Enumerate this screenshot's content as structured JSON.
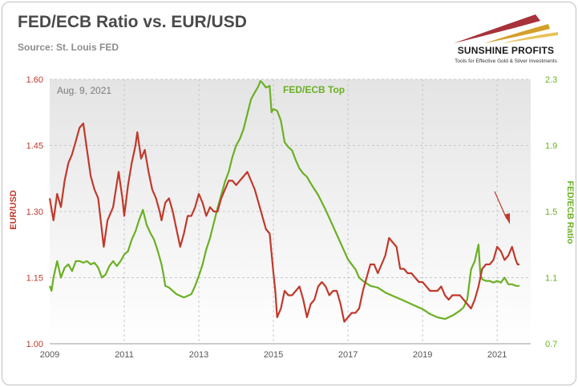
{
  "header": {
    "title": "FED/ECB Ratio vs. EUR/USD",
    "subtitle": "Source: St. Louis FED"
  },
  "logo": {
    "name": "SUNSHINE PROFITS",
    "tagline": "Tools for Effective Gold & Silver Investments",
    "colors": [
      "#c0392b",
      "#d4a02a"
    ]
  },
  "chart_data": {
    "type": "line",
    "date_label": "Aug. 9, 2021",
    "annotation": "FED/ECB Top",
    "x_ticks": [
      "2009",
      "2011",
      "2013",
      "2015",
      "2017",
      "2019",
      "2021"
    ],
    "xlim": [
      2009.0,
      2021.9
    ],
    "left_axis": {
      "label": "EUR/USD",
      "ticks": [
        "1.60",
        "1.45",
        "1.30",
        "1.15",
        "1.00"
      ],
      "ylim": [
        1.0,
        1.6
      ],
      "color": "#c0392b"
    },
    "right_axis": {
      "label": "FED/ECB Ratio",
      "ticks": [
        "2.3",
        "1.9",
        "1.5",
        "1.1",
        "0.7"
      ],
      "ylim": [
        0.7,
        2.3
      ],
      "color": "#6ab023"
    },
    "grid": true,
    "series": [
      {
        "name": "EUR/USD",
        "axis": "left",
        "color": "#c0392b",
        "points": [
          [
            2009.0,
            1.33
          ],
          [
            2009.1,
            1.28
          ],
          [
            2009.2,
            1.34
          ],
          [
            2009.3,
            1.31
          ],
          [
            2009.4,
            1.37
          ],
          [
            2009.5,
            1.41
          ],
          [
            2009.6,
            1.43
          ],
          [
            2009.7,
            1.46
          ],
          [
            2009.8,
            1.49
          ],
          [
            2009.9,
            1.5
          ],
          [
            2010.0,
            1.44
          ],
          [
            2010.1,
            1.38
          ],
          [
            2010.2,
            1.35
          ],
          [
            2010.3,
            1.33
          ],
          [
            2010.45,
            1.22
          ],
          [
            2010.55,
            1.28
          ],
          [
            2010.7,
            1.31
          ],
          [
            2010.85,
            1.39
          ],
          [
            2010.95,
            1.33
          ],
          [
            2011.0,
            1.29
          ],
          [
            2011.1,
            1.36
          ],
          [
            2011.2,
            1.41
          ],
          [
            2011.3,
            1.45
          ],
          [
            2011.35,
            1.48
          ],
          [
            2011.45,
            1.42
          ],
          [
            2011.55,
            1.44
          ],
          [
            2011.65,
            1.39
          ],
          [
            2011.75,
            1.35
          ],
          [
            2011.85,
            1.33
          ],
          [
            2011.95,
            1.3
          ],
          [
            2012.0,
            1.28
          ],
          [
            2012.1,
            1.32
          ],
          [
            2012.2,
            1.33
          ],
          [
            2012.3,
            1.3
          ],
          [
            2012.4,
            1.26
          ],
          [
            2012.5,
            1.22
          ],
          [
            2012.6,
            1.25
          ],
          [
            2012.7,
            1.29
          ],
          [
            2012.8,
            1.29
          ],
          [
            2012.9,
            1.31
          ],
          [
            2013.0,
            1.34
          ],
          [
            2013.1,
            1.32
          ],
          [
            2013.2,
            1.29
          ],
          [
            2013.3,
            1.31
          ],
          [
            2013.4,
            1.3
          ],
          [
            2013.5,
            1.3
          ],
          [
            2013.6,
            1.33
          ],
          [
            2013.7,
            1.35
          ],
          [
            2013.8,
            1.37
          ],
          [
            2013.9,
            1.37
          ],
          [
            2014.0,
            1.36
          ],
          [
            2014.1,
            1.37
          ],
          [
            2014.2,
            1.38
          ],
          [
            2014.3,
            1.39
          ],
          [
            2014.4,
            1.37
          ],
          [
            2014.5,
            1.35
          ],
          [
            2014.6,
            1.32
          ],
          [
            2014.7,
            1.29
          ],
          [
            2014.8,
            1.26
          ],
          [
            2014.9,
            1.25
          ],
          [
            2015.0,
            1.16
          ],
          [
            2015.05,
            1.12
          ],
          [
            2015.1,
            1.06
          ],
          [
            2015.2,
            1.08
          ],
          [
            2015.3,
            1.12
          ],
          [
            2015.4,
            1.11
          ],
          [
            2015.5,
            1.11
          ],
          [
            2015.6,
            1.12
          ],
          [
            2015.7,
            1.13
          ],
          [
            2015.8,
            1.1
          ],
          [
            2015.9,
            1.06
          ],
          [
            2016.0,
            1.09
          ],
          [
            2016.1,
            1.1
          ],
          [
            2016.2,
            1.13
          ],
          [
            2016.3,
            1.14
          ],
          [
            2016.4,
            1.13
          ],
          [
            2016.5,
            1.11
          ],
          [
            2016.6,
            1.12
          ],
          [
            2016.7,
            1.12
          ],
          [
            2016.8,
            1.09
          ],
          [
            2016.9,
            1.05
          ],
          [
            2017.0,
            1.06
          ],
          [
            2017.1,
            1.07
          ],
          [
            2017.2,
            1.07
          ],
          [
            2017.3,
            1.08
          ],
          [
            2017.4,
            1.12
          ],
          [
            2017.5,
            1.15
          ],
          [
            2017.6,
            1.18
          ],
          [
            2017.7,
            1.18
          ],
          [
            2017.8,
            1.16
          ],
          [
            2017.9,
            1.18
          ],
          [
            2018.0,
            1.2
          ],
          [
            2018.1,
            1.24
          ],
          [
            2018.2,
            1.23
          ],
          [
            2018.3,
            1.22
          ],
          [
            2018.4,
            1.17
          ],
          [
            2018.5,
            1.17
          ],
          [
            2018.6,
            1.16
          ],
          [
            2018.7,
            1.16
          ],
          [
            2018.8,
            1.15
          ],
          [
            2018.9,
            1.14
          ],
          [
            2019.0,
            1.14
          ],
          [
            2019.1,
            1.13
          ],
          [
            2019.2,
            1.12
          ],
          [
            2019.3,
            1.12
          ],
          [
            2019.4,
            1.12
          ],
          [
            2019.5,
            1.13
          ],
          [
            2019.6,
            1.11
          ],
          [
            2019.7,
            1.1
          ],
          [
            2019.8,
            1.11
          ],
          [
            2019.9,
            1.11
          ],
          [
            2020.0,
            1.11
          ],
          [
            2020.1,
            1.1
          ],
          [
            2020.2,
            1.09
          ],
          [
            2020.3,
            1.08
          ],
          [
            2020.4,
            1.1
          ],
          [
            2020.5,
            1.13
          ],
          [
            2020.6,
            1.17
          ],
          [
            2020.7,
            1.18
          ],
          [
            2020.8,
            1.18
          ],
          [
            2020.9,
            1.19
          ],
          [
            2021.0,
            1.22
          ],
          [
            2021.1,
            1.21
          ],
          [
            2021.2,
            1.19
          ],
          [
            2021.3,
            1.2
          ],
          [
            2021.4,
            1.22
          ],
          [
            2021.5,
            1.19
          ],
          [
            2021.55,
            1.18
          ],
          [
            2021.6,
            1.18
          ]
        ]
      },
      {
        "name": "FED/ECB Ratio",
        "axis": "right",
        "color": "#6ab023",
        "points": [
          [
            2009.0,
            1.05
          ],
          [
            2009.05,
            1.02
          ],
          [
            2009.1,
            1.1
          ],
          [
            2009.2,
            1.2
          ],
          [
            2009.3,
            1.1
          ],
          [
            2009.4,
            1.16
          ],
          [
            2009.5,
            1.18
          ],
          [
            2009.6,
            1.14
          ],
          [
            2009.7,
            1.2
          ],
          [
            2009.8,
            1.2
          ],
          [
            2009.9,
            1.19
          ],
          [
            2010.0,
            1.2
          ],
          [
            2010.1,
            1.18
          ],
          [
            2010.2,
            1.19
          ],
          [
            2010.3,
            1.16
          ],
          [
            2010.4,
            1.1
          ],
          [
            2010.5,
            1.12
          ],
          [
            2010.6,
            1.17
          ],
          [
            2010.7,
            1.2
          ],
          [
            2010.8,
            1.17
          ],
          [
            2010.9,
            1.2
          ],
          [
            2011.0,
            1.24
          ],
          [
            2011.1,
            1.26
          ],
          [
            2011.2,
            1.33
          ],
          [
            2011.3,
            1.38
          ],
          [
            2011.4,
            1.45
          ],
          [
            2011.5,
            1.51
          ],
          [
            2011.6,
            1.42
          ],
          [
            2011.7,
            1.37
          ],
          [
            2011.8,
            1.33
          ],
          [
            2011.9,
            1.26
          ],
          [
            2012.0,
            1.18
          ],
          [
            2012.05,
            1.12
          ],
          [
            2012.1,
            1.05
          ],
          [
            2012.2,
            1.04
          ],
          [
            2012.3,
            1.02
          ],
          [
            2012.4,
            1.0
          ],
          [
            2012.5,
            0.99
          ],
          [
            2012.6,
            0.98
          ],
          [
            2012.7,
            0.99
          ],
          [
            2012.8,
            1.0
          ],
          [
            2012.9,
            1.05
          ],
          [
            2013.0,
            1.11
          ],
          [
            2013.1,
            1.18
          ],
          [
            2013.2,
            1.27
          ],
          [
            2013.3,
            1.34
          ],
          [
            2013.4,
            1.43
          ],
          [
            2013.5,
            1.52
          ],
          [
            2013.6,
            1.6
          ],
          [
            2013.7,
            1.68
          ],
          [
            2013.8,
            1.74
          ],
          [
            2013.9,
            1.83
          ],
          [
            2014.0,
            1.9
          ],
          [
            2014.1,
            1.94
          ],
          [
            2014.2,
            2.0
          ],
          [
            2014.3,
            2.09
          ],
          [
            2014.4,
            2.18
          ],
          [
            2014.5,
            2.22
          ],
          [
            2014.6,
            2.26
          ],
          [
            2014.65,
            2.29
          ],
          [
            2014.7,
            2.28
          ],
          [
            2014.8,
            2.25
          ],
          [
            2014.9,
            2.26
          ],
          [
            2014.95,
            2.1
          ],
          [
            2015.0,
            2.12
          ],
          [
            2015.1,
            2.11
          ],
          [
            2015.2,
            2.05
          ],
          [
            2015.3,
            1.92
          ],
          [
            2015.4,
            1.89
          ],
          [
            2015.5,
            1.87
          ],
          [
            2015.6,
            1.81
          ],
          [
            2015.7,
            1.76
          ],
          [
            2015.8,
            1.73
          ],
          [
            2015.9,
            1.71
          ],
          [
            2016.0,
            1.67
          ],
          [
            2016.2,
            1.6
          ],
          [
            2016.4,
            1.51
          ],
          [
            2016.6,
            1.41
          ],
          [
            2016.8,
            1.31
          ],
          [
            2017.0,
            1.21
          ],
          [
            2017.2,
            1.15
          ],
          [
            2017.3,
            1.1
          ],
          [
            2017.4,
            1.08
          ],
          [
            2017.6,
            1.05
          ],
          [
            2017.8,
            1.04
          ],
          [
            2018.0,
            1.01
          ],
          [
            2018.2,
            0.99
          ],
          [
            2018.4,
            0.97
          ],
          [
            2018.6,
            0.95
          ],
          [
            2018.8,
            0.93
          ],
          [
            2019.0,
            0.91
          ],
          [
            2019.2,
            0.88
          ],
          [
            2019.4,
            0.86
          ],
          [
            2019.6,
            0.85
          ],
          [
            2019.8,
            0.87
          ],
          [
            2020.0,
            0.9
          ],
          [
            2020.1,
            0.92
          ],
          [
            2020.2,
            0.97
          ],
          [
            2020.3,
            1.15
          ],
          [
            2020.4,
            1.2
          ],
          [
            2020.5,
            1.3
          ],
          [
            2020.55,
            1.12
          ],
          [
            2020.6,
            1.09
          ],
          [
            2020.7,
            1.08
          ],
          [
            2020.8,
            1.08
          ],
          [
            2020.9,
            1.07
          ],
          [
            2021.0,
            1.08
          ],
          [
            2021.1,
            1.07
          ],
          [
            2021.2,
            1.1
          ],
          [
            2021.3,
            1.06
          ],
          [
            2021.4,
            1.06
          ],
          [
            2021.5,
            1.05
          ],
          [
            2021.6,
            1.05
          ]
        ]
      }
    ]
  }
}
